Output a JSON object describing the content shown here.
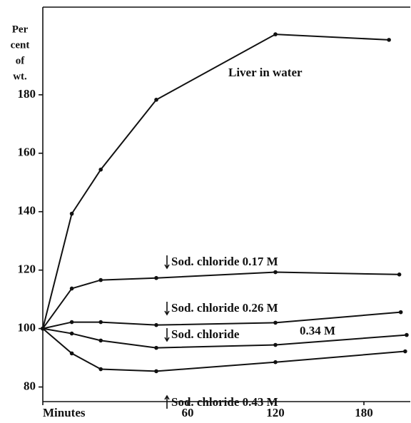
{
  "chart_data": {
    "type": "line",
    "y_label_lines": [
      "Per",
      "cent",
      "of",
      "wt."
    ],
    "xlim": [
      0,
      210
    ],
    "xticks": [
      {
        "value": 0,
        "label": "Minutes"
      },
      60,
      120,
      180
    ],
    "ylim": [
      75,
      210
    ],
    "yticks": [
      80,
      100,
      120,
      140,
      160,
      180
    ],
    "series": [
      {
        "name": "Liver in water",
        "color": "#111111",
        "x": [
          0,
          12,
          24,
          47,
          120,
          197
        ],
        "values": [
          100,
          139.3,
          154.4,
          178.3,
          200.7,
          198.8
        ]
      },
      {
        "name": "Sod. chloride 0.17 M",
        "color": "#111111",
        "x": [
          0,
          12,
          24,
          47,
          120,
          204
        ],
        "values": [
          100,
          113.7,
          116.6,
          117.3,
          119.3,
          118.5
        ]
      },
      {
        "name": "Sod. chloride 0.26 M",
        "color": "#111111",
        "x": [
          0,
          12,
          24,
          47,
          120,
          205
        ],
        "values": [
          100,
          102.2,
          102.2,
          101.2,
          102,
          105.6
        ]
      },
      {
        "name": "Sod. chloride 0.34 M",
        "color": "#111111",
        "x": [
          0,
          12,
          24,
          47,
          120,
          209
        ],
        "values": [
          100,
          98.3,
          95.9,
          93.4,
          94.4,
          97.8
        ]
      },
      {
        "name": "Sod. chloride 0.43 M",
        "color": "#111111",
        "x": [
          0,
          12,
          24,
          47,
          120,
          208
        ],
        "values": [
          100,
          91.5,
          86.1,
          85.4,
          88.5,
          92.2
        ]
      }
    ],
    "annotations": [
      "Sod. chloride",
      "0.34 M"
    ]
  }
}
